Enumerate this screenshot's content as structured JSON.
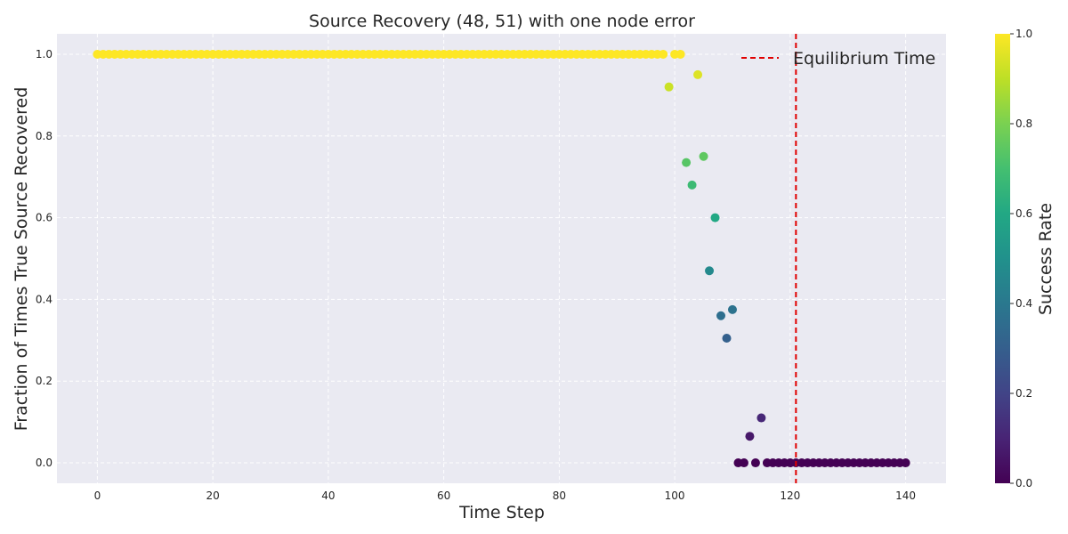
{
  "chart_data": {
    "type": "scatter",
    "title": "Source Recovery (48, 51) with one node error",
    "xlabel": "Time Step",
    "ylabel": "Fraction of Times True Source Recovered",
    "xlim": [
      -7,
      147
    ],
    "ylim": [
      -0.05,
      1.05
    ],
    "xticks": [
      0,
      20,
      40,
      60,
      80,
      100,
      120,
      140
    ],
    "yticks": [
      0.0,
      0.2,
      0.4,
      0.6,
      0.8,
      1.0
    ],
    "grid": true,
    "colormap": "viridis",
    "colorbar": {
      "label": "Success Rate",
      "ticks": [
        0.0,
        0.2,
        0.4,
        0.6,
        0.8,
        1.0
      ],
      "range": [
        0,
        1
      ]
    },
    "legend": {
      "placement": "top-right",
      "entries": [
        {
          "label": "Equilibrium Time",
          "style": "dashed",
          "color": "#e00000"
        }
      ]
    },
    "vline": {
      "x": 121,
      "color": "#e00000",
      "style": "dashed"
    },
    "points_constant_one": {
      "x_from": 0,
      "x_to": 98,
      "y": 1.0
    },
    "points": [
      {
        "x": 99,
        "y": 0.92
      },
      {
        "x": 100,
        "y": 1.0
      },
      {
        "x": 101,
        "y": 1.0
      },
      {
        "x": 102,
        "y": 0.735
      },
      {
        "x": 103,
        "y": 0.68
      },
      {
        "x": 104,
        "y": 0.95
      },
      {
        "x": 105,
        "y": 0.75
      },
      {
        "x": 106,
        "y": 0.47
      },
      {
        "x": 107,
        "y": 0.6
      },
      {
        "x": 108,
        "y": 0.36
      },
      {
        "x": 109,
        "y": 0.305
      },
      {
        "x": 110,
        "y": 0.375
      },
      {
        "x": 111,
        "y": 0.0
      },
      {
        "x": 112,
        "y": 0.0
      },
      {
        "x": 113,
        "y": 0.065
      },
      {
        "x": 114,
        "y": 0.0
      },
      {
        "x": 115,
        "y": 0.11
      },
      {
        "x": 116,
        "y": 0.0
      },
      {
        "x": 117,
        "y": 0.0
      },
      {
        "x": 118,
        "y": 0.0
      },
      {
        "x": 119,
        "y": 0.0
      },
      {
        "x": 120,
        "y": 0.0
      },
      {
        "x": 121,
        "y": 0.0
      },
      {
        "x": 122,
        "y": 0.0
      },
      {
        "x": 123,
        "y": 0.0
      },
      {
        "x": 124,
        "y": 0.0
      },
      {
        "x": 125,
        "y": 0.0
      },
      {
        "x": 126,
        "y": 0.0
      },
      {
        "x": 127,
        "y": 0.0
      },
      {
        "x": 128,
        "y": 0.0
      },
      {
        "x": 129,
        "y": 0.0
      },
      {
        "x": 130,
        "y": 0.0
      },
      {
        "x": 131,
        "y": 0.0
      },
      {
        "x": 132,
        "y": 0.0
      },
      {
        "x": 133,
        "y": 0.0
      },
      {
        "x": 134,
        "y": 0.0
      },
      {
        "x": 135,
        "y": 0.0
      },
      {
        "x": 136,
        "y": 0.0
      },
      {
        "x": 137,
        "y": 0.0
      },
      {
        "x": 138,
        "y": 0.0
      },
      {
        "x": 139,
        "y": 0.0
      },
      {
        "x": 140,
        "y": 0.0
      }
    ]
  },
  "colors": {
    "plot_background": "#eaeaf2",
    "grid": "#ffffff",
    "equilibrium_line": "#e00000"
  }
}
